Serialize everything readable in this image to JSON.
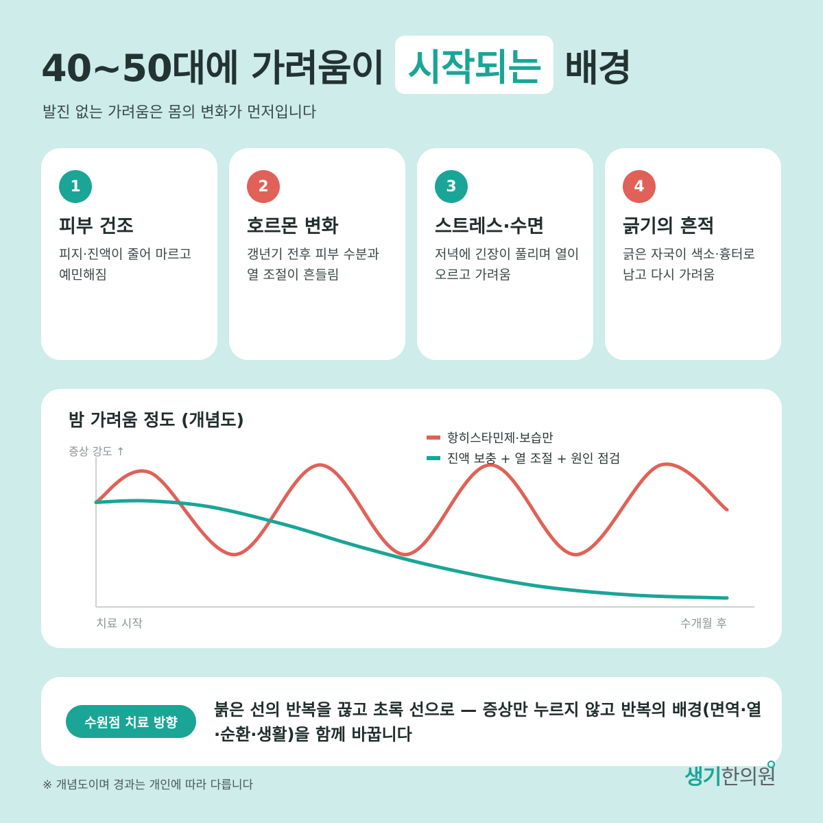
{
  "header": {
    "title_pre": "40~50대에 가려움이",
    "title_highlight": "시작되는",
    "title_post": "배경",
    "subtitle": "발진 없는 가려움은 몸의 변화가 먼저입니다"
  },
  "cards": [
    {
      "num": "1",
      "title": "피부 건조",
      "desc": "피지·진액이 줄어 마르고 예민해짐",
      "color": "#1aa596"
    },
    {
      "num": "2",
      "title": "호르몬 변화",
      "desc": "갱년기 전후 피부 수분과 열 조절이 흔들림",
      "color": "#e06157"
    },
    {
      "num": "3",
      "title": "스트레스·수면",
      "desc": "저녁에 긴장이 풀리며 열이 오르고 가려움",
      "color": "#1aa596"
    },
    {
      "num": "4",
      "title": "긁기의 흔적",
      "desc": "긁은 자국이 색소·흉터로 남고 다시 가려움",
      "color": "#e06157"
    }
  ],
  "chart_data": {
    "type": "line",
    "title": "밤 가려움 정도 (개념도)",
    "ylabel": "증상 강도 ↑",
    "x_start_label": "치료 시작",
    "x_end_label": "수개월 후",
    "legend_position": "top-right",
    "xlim": [
      0,
      1
    ],
    "ylim": [
      0,
      1
    ],
    "grid": false,
    "series": [
      {
        "name": "항히스타민제·보습만",
        "color": "#e06157",
        "x": [
          0,
          0.085,
          0.22,
          0.355,
          0.49,
          0.625,
          0.76,
          0.895,
          1
        ],
        "y": [
          0.7,
          0.9,
          0.35,
          0.95,
          0.35,
          0.95,
          0.35,
          0.95,
          0.65
        ]
      },
      {
        "name": "진액 보충 + 열 조절 + 원인 점검",
        "color": "#1aa596",
        "x": [
          0,
          0.08,
          0.18,
          0.3,
          0.42,
          0.55,
          0.7,
          0.85,
          1
        ],
        "y": [
          0.7,
          0.71,
          0.67,
          0.55,
          0.4,
          0.26,
          0.14,
          0.08,
          0.06
        ]
      }
    ]
  },
  "direction": {
    "badge": "수원점 치료 방향",
    "text": "붉은 선의 반복을 끊고 초록 선으로 — 증상만 누르지 않고 반복의 배경(면역·열·순환·생활)을 함께 바꿉니다"
  },
  "footnote": "※ 개념도이며 경과는 개인에 따라 다릅니다",
  "logo": {
    "part1": "생기",
    "part2": "한의원"
  }
}
